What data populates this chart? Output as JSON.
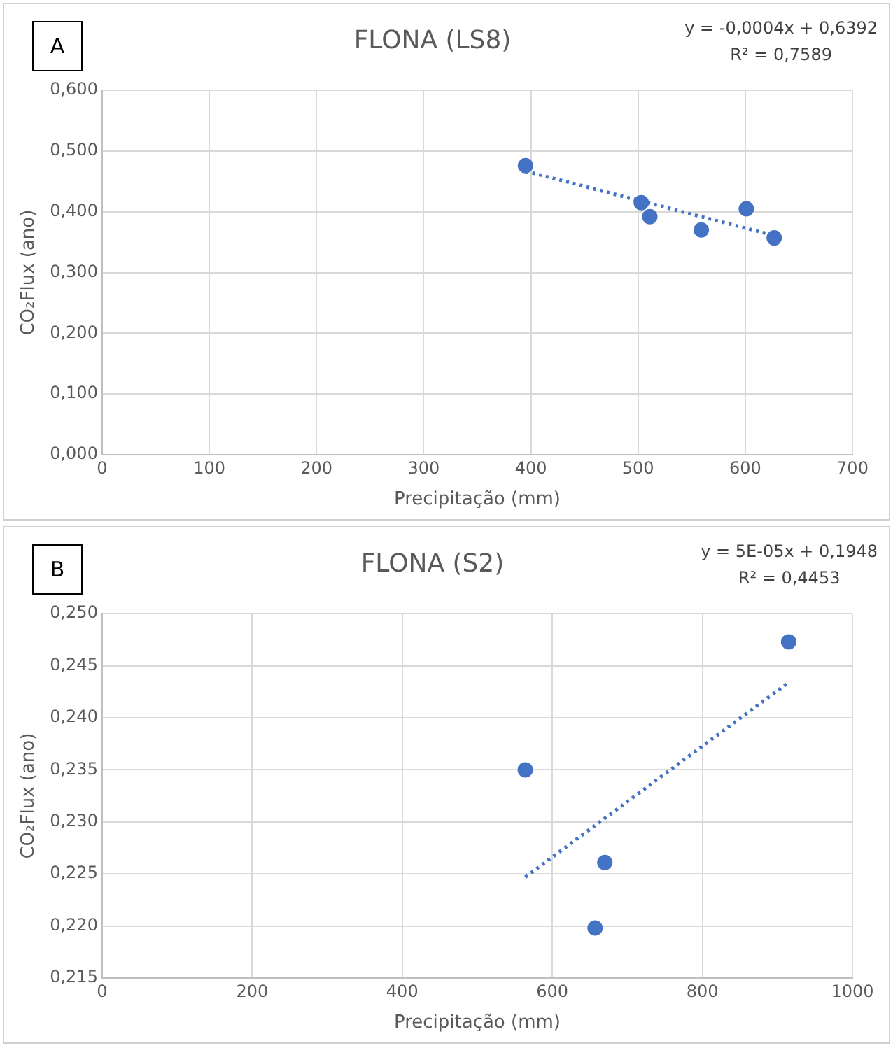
{
  "chart_data": [
    {
      "type": "scatter",
      "title": "FLONA (LS8)",
      "xlabel": "Precipitação (mm)",
      "ylabel": "CO₂Flux (ano)",
      "annotations": [
        "A",
        "y = -0,0004x + 0,6392",
        "R² = 0,7589"
      ],
      "series": [
        {
          "type": "scatter",
          "color": "#4472c4",
          "marker": "circle",
          "x": [
            395,
            503,
            511,
            559,
            601,
            627
          ],
          "values": [
            0.476,
            0.415,
            0.392,
            0.37,
            0.405,
            0.357
          ]
        },
        {
          "type": "line",
          "color": "#4472c4",
          "marker": "none",
          "line_style": "dotted",
          "x": [
            395,
            627
          ],
          "values": [
            0.467,
            0.361
          ]
        }
      ],
      "xlim": [
        0,
        700
      ],
      "xticks": [
        0,
        100,
        200,
        300,
        400,
        500,
        600,
        700
      ],
      "ylim": [
        0,
        0.6
      ],
      "yticks": [
        {
          "value": 0,
          "label": "0,000"
        },
        {
          "value": 0.1,
          "label": "0,100"
        },
        {
          "value": 0.2,
          "label": "0,200"
        },
        {
          "value": 0.3,
          "label": "0,300"
        },
        {
          "value": 0.4,
          "label": "0,400"
        },
        {
          "value": 0.5,
          "label": "0,500"
        },
        {
          "value": 0.6,
          "label": "0,600"
        }
      ],
      "grid": true,
      "legend": false
    },
    {
      "type": "scatter",
      "title": "FLONA (S2)",
      "xlabel": "Precipitação (mm)",
      "ylabel": "CO₂Flux (ano)",
      "annotations": [
        "B",
        "y = 5E-05x + 0,1948",
        "R² = 0,4453"
      ],
      "series": [
        {
          "type": "scatter",
          "color": "#4472c4",
          "marker": "circle",
          "x": [
            564,
            670,
            657,
            915
          ],
          "values": [
            0.235,
            0.2261,
            0.2198,
            0.2473
          ]
        },
        {
          "type": "line",
          "color": "#4472c4",
          "marker": "none",
          "line_style": "dotted",
          "x": [
            564,
            915
          ],
          "values": [
            0.2247,
            0.2434
          ]
        }
      ],
      "xlim": [
        0,
        1000
      ],
      "xticks": [
        0,
        200,
        400,
        600,
        800,
        1000
      ],
      "ylim": [
        0.215,
        0.25
      ],
      "yticks": [
        {
          "value": 0.215,
          "label": "0,215"
        },
        {
          "value": 0.22,
          "label": "0,220"
        },
        {
          "value": 0.225,
          "label": "0,225"
        },
        {
          "value": 0.23,
          "label": "0,230"
        },
        {
          "value": 0.235,
          "label": "0,235"
        },
        {
          "value": 0.24,
          "label": "0,240"
        },
        {
          "value": 0.245,
          "label": "0,245"
        },
        {
          "value": 0.25,
          "label": "0,250"
        }
      ],
      "grid": true,
      "legend": false
    }
  ]
}
